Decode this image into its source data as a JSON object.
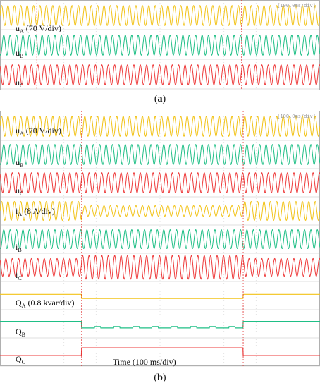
{
  "figure_a": {
    "caption_open": "(",
    "caption_letter": "a",
    "caption_close": ")",
    "scale_label": "[100.0ms/div]",
    "trace_labels": [
      {
        "main": "u",
        "sub": "A",
        "tail": " (70 V/div)"
      },
      {
        "main": "u",
        "sub": "B",
        "tail": ""
      },
      {
        "main": "u",
        "sub": "C",
        "tail": ""
      }
    ]
  },
  "figure_b": {
    "caption_open": "(",
    "caption_letter": "b",
    "caption_close": ")",
    "scale_label": "[100.0ms/div]",
    "time_label": "Time (100 ms/div)",
    "trace_labels": [
      {
        "main": "u",
        "sub": "A",
        "tail": " (70 V/div)"
      },
      {
        "main": "u",
        "sub": "B",
        "tail": ""
      },
      {
        "main": "u",
        "sub": "C",
        "tail": ""
      },
      {
        "main": "i",
        "sub": "A",
        "tail": " (8 A/div)"
      },
      {
        "main": "i",
        "sub": "B",
        "tail": ""
      },
      {
        "main": "i",
        "sub": "C",
        "tail": ""
      },
      {
        "main": "Q",
        "sub": "A",
        "tail": " (0.8 kvar/div)"
      },
      {
        "main": "Q",
        "sub": "B",
        "tail": ""
      },
      {
        "main": "Q",
        "sub": "C",
        "tail": ""
      }
    ]
  },
  "colors": {
    "phase_a": "#f2c318",
    "phase_b": "#1fbf86",
    "phase_c": "#ee3b3b",
    "cursor": "#e03030",
    "grid": "#c8c8c8"
  },
  "chart_data": [
    {
      "type": "line",
      "x_unit_per_div": "100 ms",
      "x_divisions": 10,
      "cursors_div": [
        1.15,
        7.55
      ],
      "series": [
        {
          "phase": "A",
          "kind": "voltage",
          "cycles_per_div": 5,
          "events": []
        },
        {
          "phase": "B",
          "kind": "voltage",
          "cycles_per_div": 5,
          "events": []
        },
        {
          "phase": "C",
          "kind": "voltage",
          "cycles_per_div": 5,
          "events": []
        }
      ]
    },
    {
      "type": "line",
      "x_unit_per_div": "100 ms",
      "x_divisions": 10,
      "cursors_div": [
        2.55,
        7.6
      ],
      "series": [
        {
          "phase": "A",
          "kind": "voltage",
          "cycles_per_div": 5
        },
        {
          "phase": "B",
          "kind": "voltage",
          "cycles_per_div": 5
        },
        {
          "phase": "C",
          "kind": "voltage",
          "cycles_per_div": 5
        },
        {
          "phase": "A",
          "kind": "current",
          "cycles_per_div": 5,
          "amplitude_before": 0.8,
          "amplitude_during": 0.45,
          "amplitude_after": 0.8
        },
        {
          "phase": "B",
          "kind": "current",
          "cycles_per_div": 5,
          "amplitude_before": 0.8,
          "amplitude_during": 0.8,
          "amplitude_after": 0.8
        },
        {
          "phase": "C",
          "kind": "current",
          "cycles_per_div": 5,
          "amplitude_before": 0.75,
          "amplitude_during": 1.0,
          "amplitude_after": 0.75
        },
        {
          "phase": "A",
          "kind": "reactive_power",
          "level_before": 0.1,
          "level_during": -0.25,
          "level_after": 0.1
        },
        {
          "phase": "B",
          "kind": "reactive_power",
          "level_before": 0.2,
          "level_during": -0.35,
          "level_after": 0.2
        },
        {
          "phase": "C",
          "kind": "reactive_power",
          "level_before": -0.3,
          "level_during": 0.35,
          "level_after": -0.3
        }
      ]
    }
  ]
}
